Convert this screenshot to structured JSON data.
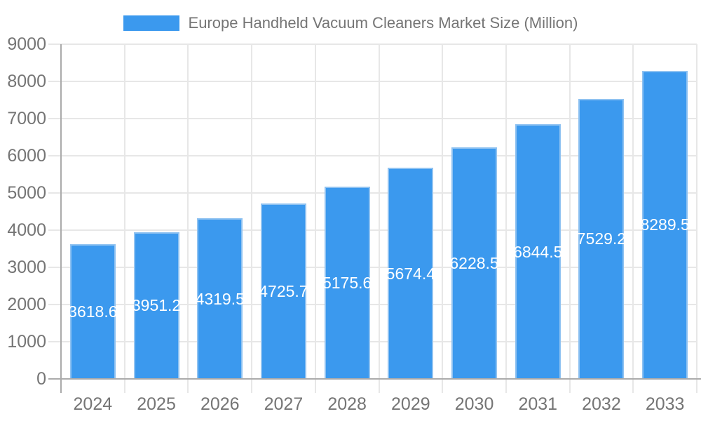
{
  "chart_data": {
    "type": "bar",
    "title": "Europe Handheld Vacuum Cleaners Market Size (Million)",
    "categories": [
      "2024",
      "2025",
      "2026",
      "2027",
      "2028",
      "2029",
      "2030",
      "2031",
      "2032",
      "2033"
    ],
    "values": [
      3618.6,
      3951.2,
      4319.5,
      4725.7,
      5175.6,
      5674.4,
      6228.5,
      6844.5,
      7529.2,
      8289.5
    ],
    "value_labels": [
      "3618.6",
      "3951.2",
      "4319.5",
      "4725.7",
      "5175.6",
      "5674.4",
      "6228.5",
      "6844.5",
      "7529.2",
      "8289.5"
    ],
    "xlabel": "",
    "ylabel": "",
    "ylim": [
      0,
      9000
    ],
    "ytick_step": 1000,
    "ytick_labels": [
      "0",
      "1000",
      "2000",
      "3000",
      "4000",
      "5000",
      "6000",
      "7000",
      "8000",
      "9000"
    ],
    "grid": true,
    "legend_position": "top"
  },
  "colors": {
    "bar_fill": "#3b99ee",
    "bar_border": "#8fc2f1",
    "grid": "#e7e7e7",
    "axis": "#ababab",
    "tick_text": "#757575",
    "legend_text": "#757575",
    "value_text": "#ffffff"
  }
}
